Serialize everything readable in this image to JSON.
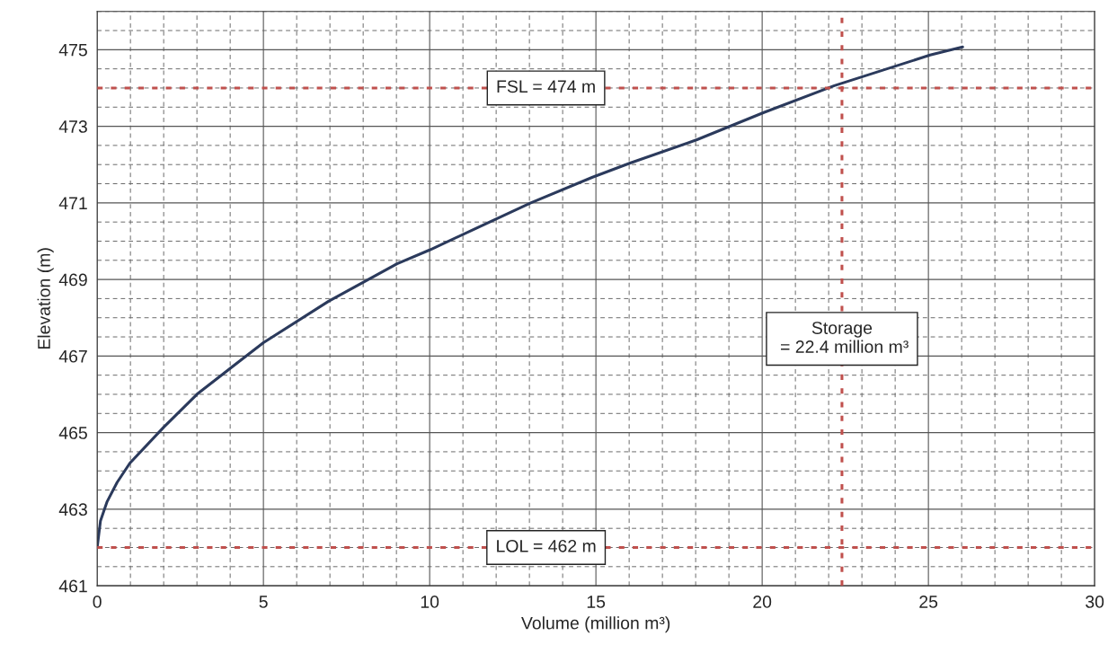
{
  "chart_data": {
    "type": "line",
    "xlabel": "Volume (million m³)",
    "ylabel": "Elevation (m)",
    "x": [
      0,
      0.1,
      0.3,
      0.6,
      0.98,
      2.0,
      3.04,
      5.0,
      6.96,
      9.02,
      10.0,
      13.04,
      14.9,
      16.03,
      18.04,
      20.05,
      22.17,
      25.05,
      26.03
    ],
    "series": [
      {
        "color": "#2b3a5c",
        "values": [
          462.0,
          462.7,
          463.2,
          463.7,
          464.2,
          465.14,
          466.03,
          467.35,
          468.43,
          469.41,
          469.77,
          471.0,
          471.67,
          472.04,
          472.65,
          473.36,
          474.06,
          474.86,
          475.07
        ]
      }
    ],
    "xlim": [
      0,
      30
    ],
    "xticks": [
      0,
      5,
      10,
      15,
      20,
      25,
      30
    ],
    "ylim": [
      461,
      476
    ],
    "yticks": [
      461,
      463,
      465,
      467,
      469,
      471,
      473,
      475
    ],
    "grid": true,
    "marker": "none",
    "line_style": "solid",
    "ref_lines": [
      {
        "axis": "y",
        "value": 474,
        "label": "FSL = 474 m",
        "color": "#c0504d",
        "line_style": "dotted"
      },
      {
        "axis": "y",
        "value": 462,
        "label": "LOL = 462 m",
        "color": "#c0504d",
        "line_style": "dotted"
      },
      {
        "axis": "x",
        "value": 22.4,
        "label": "Storage\n = 22.4 million m³",
        "color": "#c0504d",
        "line_style": "dotted"
      }
    ]
  }
}
